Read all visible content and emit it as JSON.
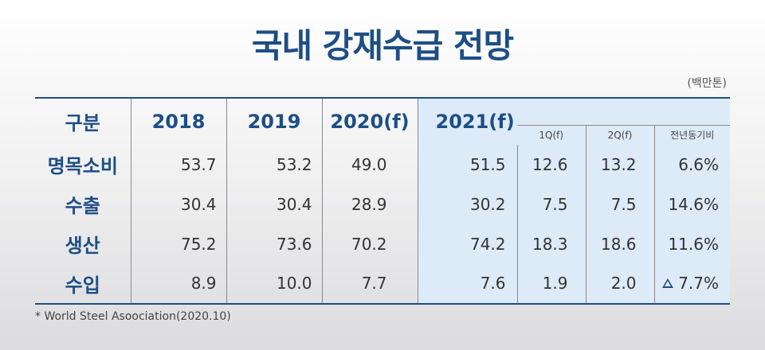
{
  "title": "국내 강재수급 전망",
  "unit": "(백만톤)",
  "header": {
    "category": "구분",
    "years": [
      "2018",
      "2019",
      "2020(f)"
    ],
    "year_2021": "2021(f)",
    "sub": [
      "1Q(f)",
      "2Q(f)",
      "전년동기비"
    ]
  },
  "rows": [
    {
      "label": "명목소비",
      "v2018": "53.7",
      "v2019": "53.2",
      "v2020": "49.0",
      "v2021": "51.5",
      "q1": "12.6",
      "q2": "13.2",
      "yoy": "6.6%",
      "neg": false
    },
    {
      "label": "수출",
      "v2018": "30.4",
      "v2019": "30.4",
      "v2020": "28.9",
      "v2021": "30.2",
      "q1": "7.5",
      "q2": "7.5",
      "yoy": "14.6%",
      "neg": false
    },
    {
      "label": "생산",
      "v2018": "75.2",
      "v2019": "73.6",
      "v2020": "70.2",
      "v2021": "74.2",
      "q1": "18.3",
      "q2": "18.6",
      "yoy": "11.6%",
      "neg": false
    },
    {
      "label": "수입",
      "v2018": "8.9",
      "v2019": "10.0",
      "v2020": "7.7",
      "v2021": "7.6",
      "q1": "1.9",
      "q2": "2.0",
      "yoy": "7.7%",
      "neg": true
    }
  ],
  "note": "* World Steel Asoociation(2020.10)",
  "colors": {
    "accent": "#1d4e86",
    "highlight": "#ddeaf7"
  }
}
